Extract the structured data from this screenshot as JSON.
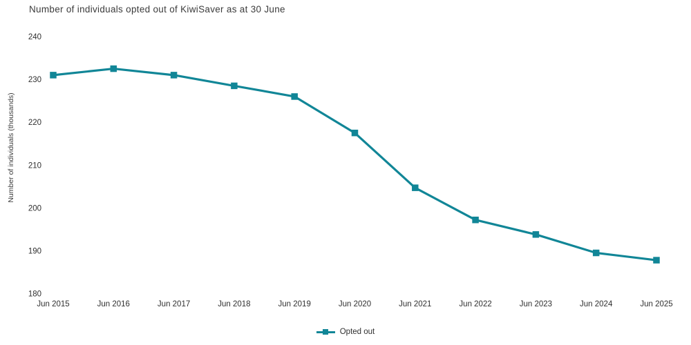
{
  "chart_data": {
    "type": "line",
    "title": "Number of individuals opted out of KiwiSaver as at 30 June",
    "ylabel": "Number of individuals (thousands)",
    "xlabel": "",
    "categories": [
      "Jun 2015",
      "Jun 2016",
      "Jun 2017",
      "Jun 2018",
      "Jun 2019",
      "Jun 2020",
      "Jun 2021",
      "Jun 2022",
      "Jun 2023",
      "Jun 2024",
      "Jun 2025"
    ],
    "series": [
      {
        "name": "Opted out",
        "values": [
          231,
          232.5,
          231,
          228.5,
          226,
          217.5,
          204.7,
          197.2,
          193.8,
          189.5,
          187.8
        ]
      }
    ],
    "ylim": [
      180,
      240
    ],
    "yticks": [
      240,
      230,
      220,
      210,
      200,
      190,
      180
    ],
    "grid": false,
    "axis_lines": false,
    "legend_position": "bottom-center",
    "marker": "square",
    "colors": {
      "series": "#118697",
      "text": "#2f2f2f"
    }
  }
}
